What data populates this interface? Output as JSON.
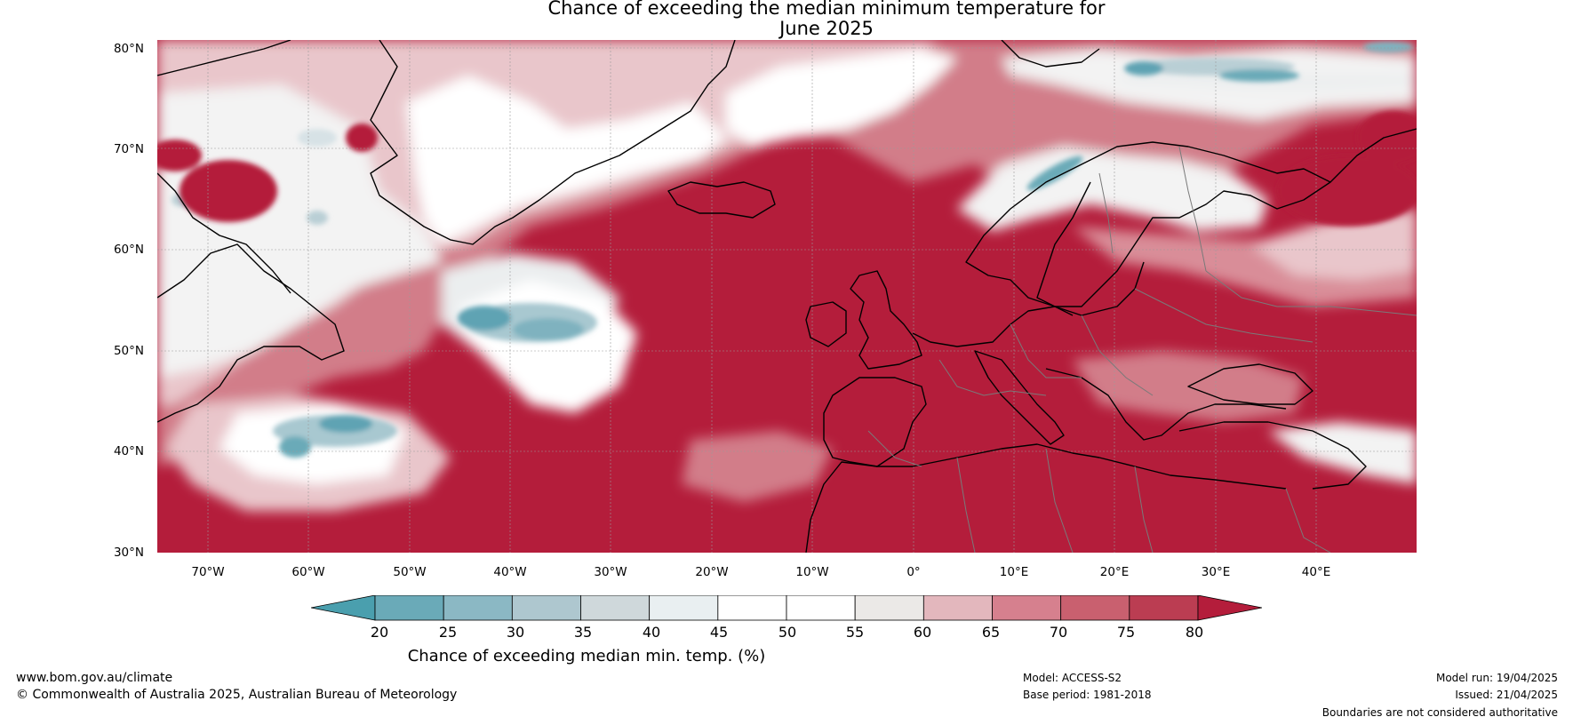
{
  "title_line1": "Chance of exceeding the median minimum temperature for",
  "title_line2": "June 2025",
  "lat_labels": [
    "80°N",
    "70°N",
    "60°N",
    "50°N",
    "40°N",
    "30°N"
  ],
  "lon_labels": [
    "70°W",
    "60°W",
    "50°W",
    "40°W",
    "30°W",
    "20°W",
    "10°W",
    "0°",
    "10°E",
    "20°E",
    "30°E",
    "40°E"
  ],
  "colorbar": {
    "ticks": [
      "20",
      "25",
      "30",
      "35",
      "40",
      "45",
      "50",
      "55",
      "60",
      "65",
      "70",
      "75",
      "80"
    ],
    "colors": [
      "#4a9fae",
      "#6aaab8",
      "#8bb8c4",
      "#aec7cf",
      "#cfd8db",
      "#e9eff1",
      "#ffffff",
      "#ffffff",
      "#ebe9e7",
      "#e3b7bd",
      "#d6808e",
      "#c9606f",
      "#bb3d52",
      "#b41d3b"
    ],
    "label": "Chance of exceeding median min. temp. (%)"
  },
  "footer": {
    "url": "www.bom.gov.au/climate",
    "copyright": "© Commonwealth of Australia 2025, Australian Bureau of Meteorology",
    "model": "Model: ACCESS-S2",
    "base_period": "Base period: 1981-2018",
    "model_run": "Model run: 19/04/2025",
    "issued": "Issued: 21/04/2025",
    "disclaimer": "Boundaries are not considered authoritative"
  }
}
